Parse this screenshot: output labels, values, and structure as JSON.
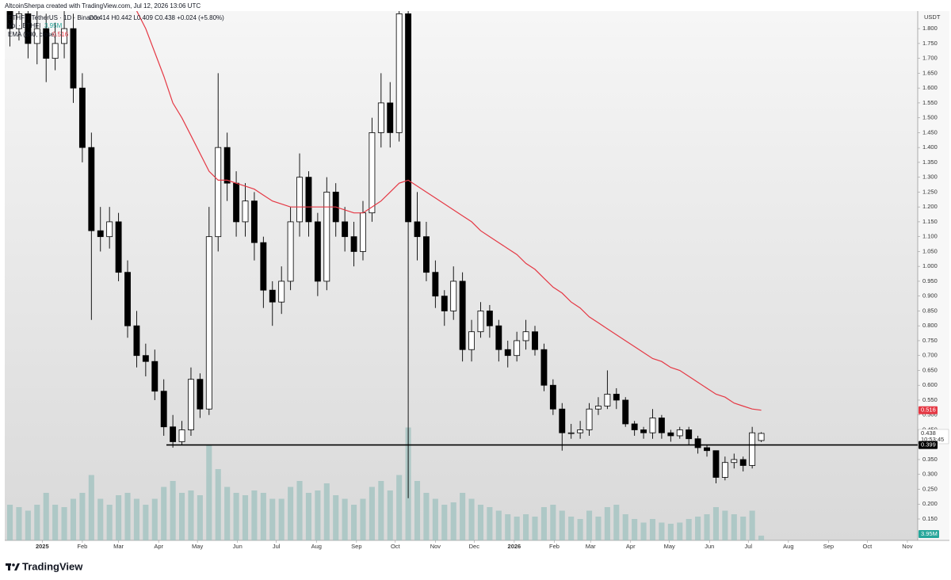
{
  "chart_data": {
    "type": "candlestick",
    "header": "AltcoinSherpa created with TradingView.com, Jul 12, 2026 13:06 UTC",
    "symbol": "ETHFI / TetherUS · 1D · Binance",
    "ohlc_text": "O0.414 H0.442 L0.409 C0.438 +0.024 (+5.80%)",
    "volume_title": "Vol · ETHFI",
    "volume_value": "3.95M",
    "ema_title": "EMA (200, close)",
    "ema_value": "0.516",
    "currency": "USDT",
    "brand": "TradingView",
    "up_color": "#ffffff",
    "down_color": "#000000",
    "ema_color": "#e53945",
    "volume_color": "#9fc2bf",
    "grid": false,
    "x": [
      -25,
      -18,
      -11,
      -4,
      3,
      10,
      17,
      24,
      31,
      38,
      45,
      52,
      59,
      66,
      73,
      80,
      87,
      94,
      101,
      108,
      115,
      122,
      129,
      136,
      143,
      150,
      157,
      164,
      171,
      178,
      185,
      192,
      199,
      206,
      213,
      220,
      227,
      234,
      241,
      248,
      255,
      262,
      269,
      276,
      283,
      290,
      297,
      304,
      311,
      318,
      325,
      332,
      339,
      346,
      353,
      360,
      367,
      374,
      381,
      388,
      395,
      402,
      409,
      416,
      423,
      430,
      437,
      444,
      451,
      458,
      465,
      472,
      479,
      486,
      493,
      500,
      507,
      514,
      521,
      528,
      535,
      542,
      549,
      556
    ],
    "open": [
      1.88,
      1.8,
      1.85,
      1.75,
      1.8,
      1.7,
      1.75,
      1.8,
      1.6,
      1.4,
      1.12,
      1.1,
      1.15,
      0.98,
      0.8,
      0.7,
      0.68,
      0.58,
      0.46,
      0.41,
      0.45,
      0.62,
      0.52,
      1.1,
      1.4,
      1.28,
      1.15,
      1.22,
      1.08,
      0.92,
      0.88,
      0.95,
      1.15,
      1.3,
      1.15,
      0.95,
      1.25,
      1.15,
      1.1,
      1.05,
      1.18,
      1.45,
      1.55,
      1.45,
      1.85,
      1.15,
      1.1,
      0.98,
      0.9,
      0.85,
      0.95,
      0.72,
      0.78,
      0.85,
      0.8,
      0.72,
      0.7,
      0.75,
      0.78,
      0.72,
      0.6,
      0.52,
      0.44,
      0.44,
      0.45,
      0.52,
      0.53,
      0.57,
      0.55,
      0.47,
      0.45,
      0.44,
      0.49,
      0.44,
      0.43,
      0.45,
      0.42,
      0.39,
      0.38,
      0.29,
      0.34,
      0.35,
      0.33,
      0.414
    ],
    "high": [
      1.95,
      1.95,
      1.92,
      1.9,
      1.85,
      1.82,
      1.9,
      1.85,
      1.65,
      1.45,
      1.2,
      1.2,
      1.18,
      1.02,
      0.85,
      0.74,
      0.72,
      0.62,
      0.5,
      0.48,
      0.66,
      0.64,
      1.2,
      1.65,
      1.45,
      1.32,
      1.28,
      1.25,
      1.1,
      0.95,
      1.0,
      1.2,
      1.38,
      1.32,
      1.18,
      1.3,
      1.28,
      1.2,
      1.15,
      1.22,
      1.5,
      1.65,
      1.62,
      1.9,
      1.88,
      1.25,
      1.15,
      1.02,
      0.92,
      1.0,
      0.98,
      0.82,
      0.88,
      0.87,
      0.82,
      0.75,
      0.78,
      0.82,
      0.8,
      0.74,
      0.62,
      0.54,
      0.47,
      0.48,
      0.54,
      0.56,
      0.65,
      0.59,
      0.56,
      0.48,
      0.46,
      0.52,
      0.5,
      0.45,
      0.46,
      0.46,
      0.43,
      0.4,
      0.38,
      0.36,
      0.37,
      0.36,
      0.46,
      0.442
    ],
    "low": [
      1.74,
      1.76,
      1.7,
      1.68,
      1.62,
      1.66,
      1.7,
      1.55,
      1.35,
      0.82,
      1.05,
      1.06,
      0.95,
      0.76,
      0.66,
      0.63,
      0.55,
      0.43,
      0.39,
      0.4,
      0.43,
      0.49,
      0.5,
      1.05,
      1.22,
      1.1,
      1.1,
      1.02,
      0.86,
      0.8,
      0.84,
      0.92,
      1.1,
      1.1,
      0.9,
      0.92,
      1.1,
      1.05,
      1.0,
      1.02,
      1.15,
      1.4,
      1.4,
      1.42,
      0.22,
      1.02,
      0.95,
      0.86,
      0.8,
      0.82,
      0.68,
      0.68,
      0.76,
      0.76,
      0.68,
      0.66,
      0.68,
      0.72,
      0.7,
      0.58,
      0.5,
      0.38,
      0.42,
      0.42,
      0.43,
      0.5,
      0.52,
      0.52,
      0.46,
      0.43,
      0.42,
      0.42,
      0.42,
      0.41,
      0.42,
      0.4,
      0.37,
      0.36,
      0.27,
      0.28,
      0.32,
      0.31,
      0.32,
      0.409
    ],
    "close": [
      1.8,
      1.85,
      1.75,
      1.8,
      1.7,
      1.75,
      1.8,
      1.6,
      1.4,
      1.12,
      1.1,
      1.15,
      0.98,
      0.8,
      0.7,
      0.68,
      0.58,
      0.46,
      0.41,
      0.45,
      0.62,
      0.52,
      1.1,
      1.4,
      1.28,
      1.15,
      1.22,
      1.08,
      0.92,
      0.88,
      0.95,
      1.15,
      1.3,
      1.15,
      0.95,
      1.25,
      1.15,
      1.1,
      1.05,
      1.18,
      1.45,
      1.55,
      1.45,
      1.85,
      1.15,
      1.1,
      0.98,
      0.9,
      0.85,
      0.95,
      0.72,
      0.78,
      0.85,
      0.8,
      0.72,
      0.7,
      0.75,
      0.78,
      0.72,
      0.6,
      0.52,
      0.44,
      0.44,
      0.45,
      0.52,
      0.53,
      0.57,
      0.55,
      0.47,
      0.45,
      0.44,
      0.49,
      0.44,
      0.43,
      0.45,
      0.42,
      0.39,
      0.38,
      0.29,
      0.34,
      0.35,
      0.33,
      0.44,
      0.438
    ],
    "volume": [
      30,
      28,
      25,
      30,
      40,
      30,
      28,
      35,
      40,
      55,
      35,
      30,
      38,
      40,
      35,
      30,
      35,
      45,
      50,
      40,
      42,
      38,
      80,
      60,
      45,
      40,
      38,
      42,
      40,
      35,
      35,
      45,
      50,
      40,
      42,
      48,
      38,
      35,
      30,
      35,
      45,
      50,
      42,
      55,
      95,
      50,
      40,
      35,
      30,
      32,
      40,
      35,
      30,
      28,
      25,
      22,
      20,
      22,
      20,
      28,
      30,
      25,
      20,
      18,
      25,
      20,
      28,
      30,
      22,
      18,
      15,
      18,
      15,
      14,
      15,
      18,
      20,
      22,
      28,
      25,
      22,
      20,
      25,
      3.95
    ],
    "ema": [
      null,
      null,
      null,
      null,
      null,
      null,
      null,
      null,
      null,
      null,
      null,
      null,
      null,
      null,
      1.86,
      1.8,
      1.72,
      1.64,
      1.55,
      1.5,
      1.44,
      1.38,
      1.32,
      1.29,
      1.29,
      1.28,
      1.27,
      1.26,
      1.24,
      1.22,
      1.21,
      1.2,
      1.2,
      1.2,
      1.2,
      1.2,
      1.2,
      1.19,
      1.18,
      1.18,
      1.2,
      1.22,
      1.25,
      1.28,
      1.29,
      1.27,
      1.25,
      1.23,
      1.21,
      1.19,
      1.17,
      1.15,
      1.12,
      1.1,
      1.08,
      1.06,
      1.04,
      1.01,
      0.99,
      0.96,
      0.93,
      0.91,
      0.88,
      0.86,
      0.83,
      0.81,
      0.79,
      0.77,
      0.75,
      0.73,
      0.71,
      0.69,
      0.68,
      0.66,
      0.65,
      0.63,
      0.61,
      0.59,
      0.57,
      0.56,
      0.54,
      0.53,
      0.52,
      0.516
    ],
    "hline": {
      "value": 0.399,
      "label": "0.399",
      "start": 96
    },
    "last_price": {
      "value": 0.438,
      "label": "0.438",
      "countdown": "10:53:45"
    },
    "ema_last": {
      "value": 0.516,
      "label": "0.516"
    },
    "xlim": [
      -29,
      677
    ],
    "ylim": [
      0.078,
      1.859
    ],
    "vlim": [
      0,
      100
    ],
    "xticks": [
      {
        "value": 0,
        "label": "2025"
      },
      {
        "value": 31,
        "label": "Feb"
      },
      {
        "value": 59,
        "label": "Mar"
      },
      {
        "value": 90,
        "label": "Apr"
      },
      {
        "value": 120,
        "label": "May"
      },
      {
        "value": 151,
        "label": "Jun"
      },
      {
        "value": 181,
        "label": "Jul"
      },
      {
        "value": 212,
        "label": "Aug"
      },
      {
        "value": 243,
        "label": "Sep"
      },
      {
        "value": 273,
        "label": "Oct"
      },
      {
        "value": 304,
        "label": "Nov"
      },
      {
        "value": 334,
        "label": "Dec"
      },
      {
        "value": 365,
        "label": "2026"
      },
      {
        "value": 396,
        "label": "Feb"
      },
      {
        "value": 424,
        "label": "Mar"
      },
      {
        "value": 455,
        "label": "Apr"
      },
      {
        "value": 485,
        "label": "May"
      },
      {
        "value": 516,
        "label": "Jun"
      },
      {
        "value": 546,
        "label": "Jul"
      },
      {
        "value": 577,
        "label": "Aug"
      },
      {
        "value": 608,
        "label": "Sep"
      },
      {
        "value": 638,
        "label": "Oct"
      },
      {
        "value": 669,
        "label": "Nov"
      }
    ],
    "yticks": [
      {
        "value": 0.15,
        "label": "0.150"
      },
      {
        "value": 0.2,
        "label": "0.200"
      },
      {
        "value": 0.25,
        "label": "0.250"
      },
      {
        "value": 0.3,
        "label": "0.300"
      },
      {
        "value": 0.35,
        "label": "0.350"
      },
      {
        "value": 0.45,
        "label": "0.450"
      },
      {
        "value": 0.5,
        "label": "0.500"
      },
      {
        "value": 0.55,
        "label": "0.550"
      },
      {
        "value": 0.6,
        "label": "0.600"
      },
      {
        "value": 0.65,
        "label": "0.650"
      },
      {
        "value": 0.7,
        "label": "0.700"
      },
      {
        "value": 0.75,
        "label": "0.750"
      },
      {
        "value": 0.8,
        "label": "0.800"
      },
      {
        "value": 0.85,
        "label": "0.850"
      },
      {
        "value": 0.9,
        "label": "0.900"
      },
      {
        "value": 0.95,
        "label": "0.950"
      },
      {
        "value": 1.0,
        "label": "1.000"
      },
      {
        "value": 1.05,
        "label": "1.050"
      },
      {
        "value": 1.1,
        "label": "1.100"
      },
      {
        "value": 1.15,
        "label": "1.150"
      },
      {
        "value": 1.2,
        "label": "1.200"
      },
      {
        "value": 1.25,
        "label": "1.250"
      },
      {
        "value": 1.3,
        "label": "1.300"
      },
      {
        "value": 1.35,
        "label": "1.350"
      },
      {
        "value": 1.4,
        "label": "1.400"
      },
      {
        "value": 1.45,
        "label": "1.450"
      },
      {
        "value": 1.5,
        "label": "1.500"
      },
      {
        "value": 1.55,
        "label": "1.550"
      },
      {
        "value": 1.6,
        "label": "1.600"
      },
      {
        "value": 1.65,
        "label": "1.650"
      },
      {
        "value": 1.7,
        "label": "1.700"
      },
      {
        "value": 1.75,
        "label": "1.750"
      },
      {
        "value": 1.8,
        "label": "1.800"
      }
    ]
  }
}
